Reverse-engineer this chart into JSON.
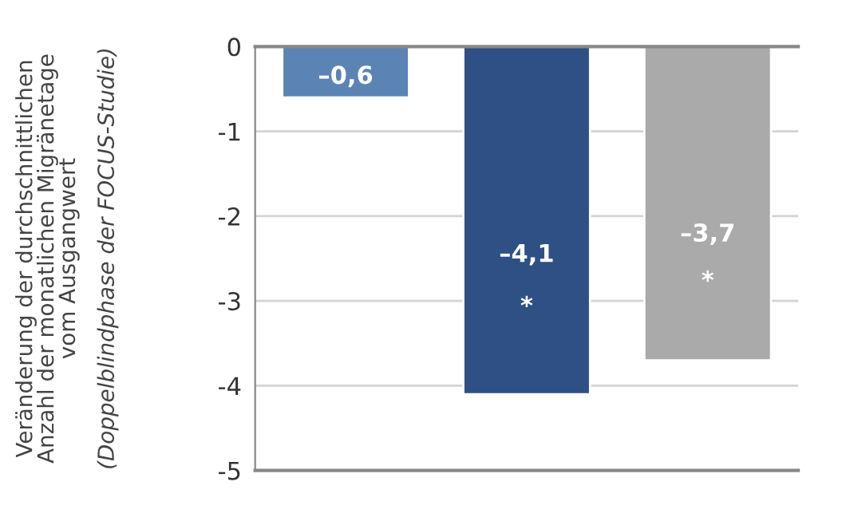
{
  "chart_data": {
    "type": "bar",
    "ylabel": "Veränderung der durchschnittlichen\nAnzahl der monatlichen Migränetage\nvom Ausgangwert\n(Doppelblindphase der FOCUS-Studie)",
    "categories": [
      null,
      null,
      null
    ],
    "values": [
      -0.6,
      -4.1,
      -3.7
    ],
    "colors": [
      "#5b84b5",
      "#2e5085",
      "#aaaaaa"
    ],
    "value_labels": [
      "–0,6",
      "–4,1",
      "–3,7"
    ],
    "annotations": [
      "*",
      "*"
    ],
    "ylim": [
      -5,
      0
    ],
    "yticks": [
      0,
      {
        "value": -1,
        "label": "-1"
      },
      {
        "value": -2,
        "label": "-2"
      },
      {
        "value": -3,
        "label": "-3"
      },
      {
        "value": -4,
        "label": "-4"
      },
      {
        "value": -5,
        "label": "-5"
      }
    ],
    "grid": "y"
  }
}
